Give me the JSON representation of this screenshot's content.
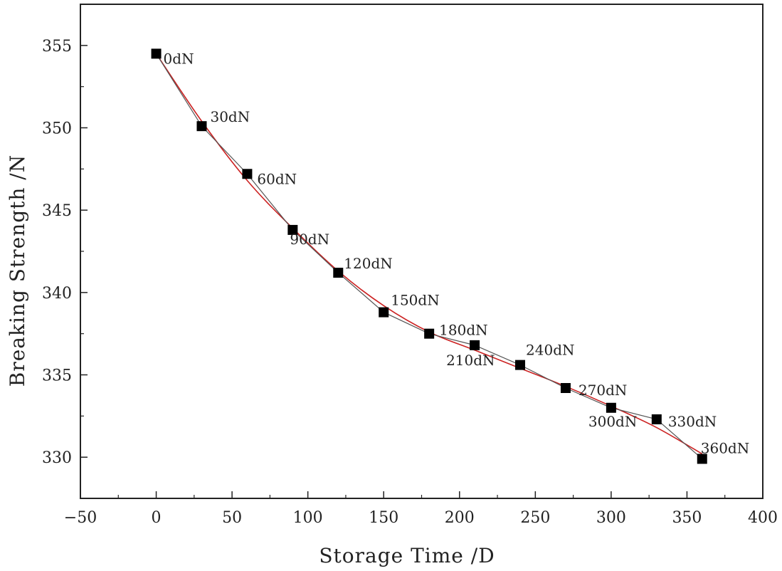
{
  "chart_data": {
    "type": "line",
    "title": "",
    "xlabel": "Storage Time /D",
    "ylabel": "Breaking Strength /N",
    "xlim": [
      -50,
      400
    ],
    "ylim": [
      327.5,
      357.5
    ],
    "x_ticks": [
      -50,
      0,
      50,
      100,
      150,
      200,
      250,
      300,
      350,
      400
    ],
    "y_ticks": [
      330,
      335,
      340,
      345,
      350,
      355
    ],
    "x_tick_labels": [
      "−50",
      "0",
      "50",
      "100",
      "150",
      "200",
      "250",
      "300",
      "350",
      "400"
    ],
    "y_tick_labels": [
      "330",
      "335",
      "340",
      "345",
      "350",
      "355"
    ],
    "grid": false,
    "legend": "none",
    "series": [
      {
        "marker": "square",
        "color": "#000000",
        "line_color": "#555555",
        "points": [
          {
            "x": 0,
            "y": 354.5,
            "label": "0dN"
          },
          {
            "x": 30,
            "y": 350.1,
            "label": "30dN"
          },
          {
            "x": 60,
            "y": 347.2,
            "label": "60dN"
          },
          {
            "x": 90,
            "y": 343.8,
            "label": "90dN"
          },
          {
            "x": 120,
            "y": 341.2,
            "label": "120dN"
          },
          {
            "x": 150,
            "y": 338.8,
            "label": "150dN"
          },
          {
            "x": 180,
            "y": 337.5,
            "label": "180dN"
          },
          {
            "x": 210,
            "y": 336.8,
            "label": "210dN"
          },
          {
            "x": 240,
            "y": 335.6,
            "label": "240dN"
          },
          {
            "x": 270,
            "y": 334.2,
            "label": "270dN"
          },
          {
            "x": 300,
            "y": 333.0,
            "label": "300dN"
          },
          {
            "x": 330,
            "y": 332.3,
            "label": "330dN"
          },
          {
            "x": 360,
            "y": 329.9,
            "label": "360dN"
          }
        ]
      }
    ],
    "fit_curve": {
      "color": "#cc2222",
      "x": [
        0,
        30,
        60,
        90,
        120,
        150,
        180,
        210,
        240,
        270,
        300,
        330,
        360
      ],
      "y": [
        354.5,
        350.4,
        346.8,
        343.9,
        341.3,
        339.2,
        337.6,
        336.5,
        335.4,
        334.3,
        333.1,
        331.8,
        330.2
      ]
    }
  }
}
